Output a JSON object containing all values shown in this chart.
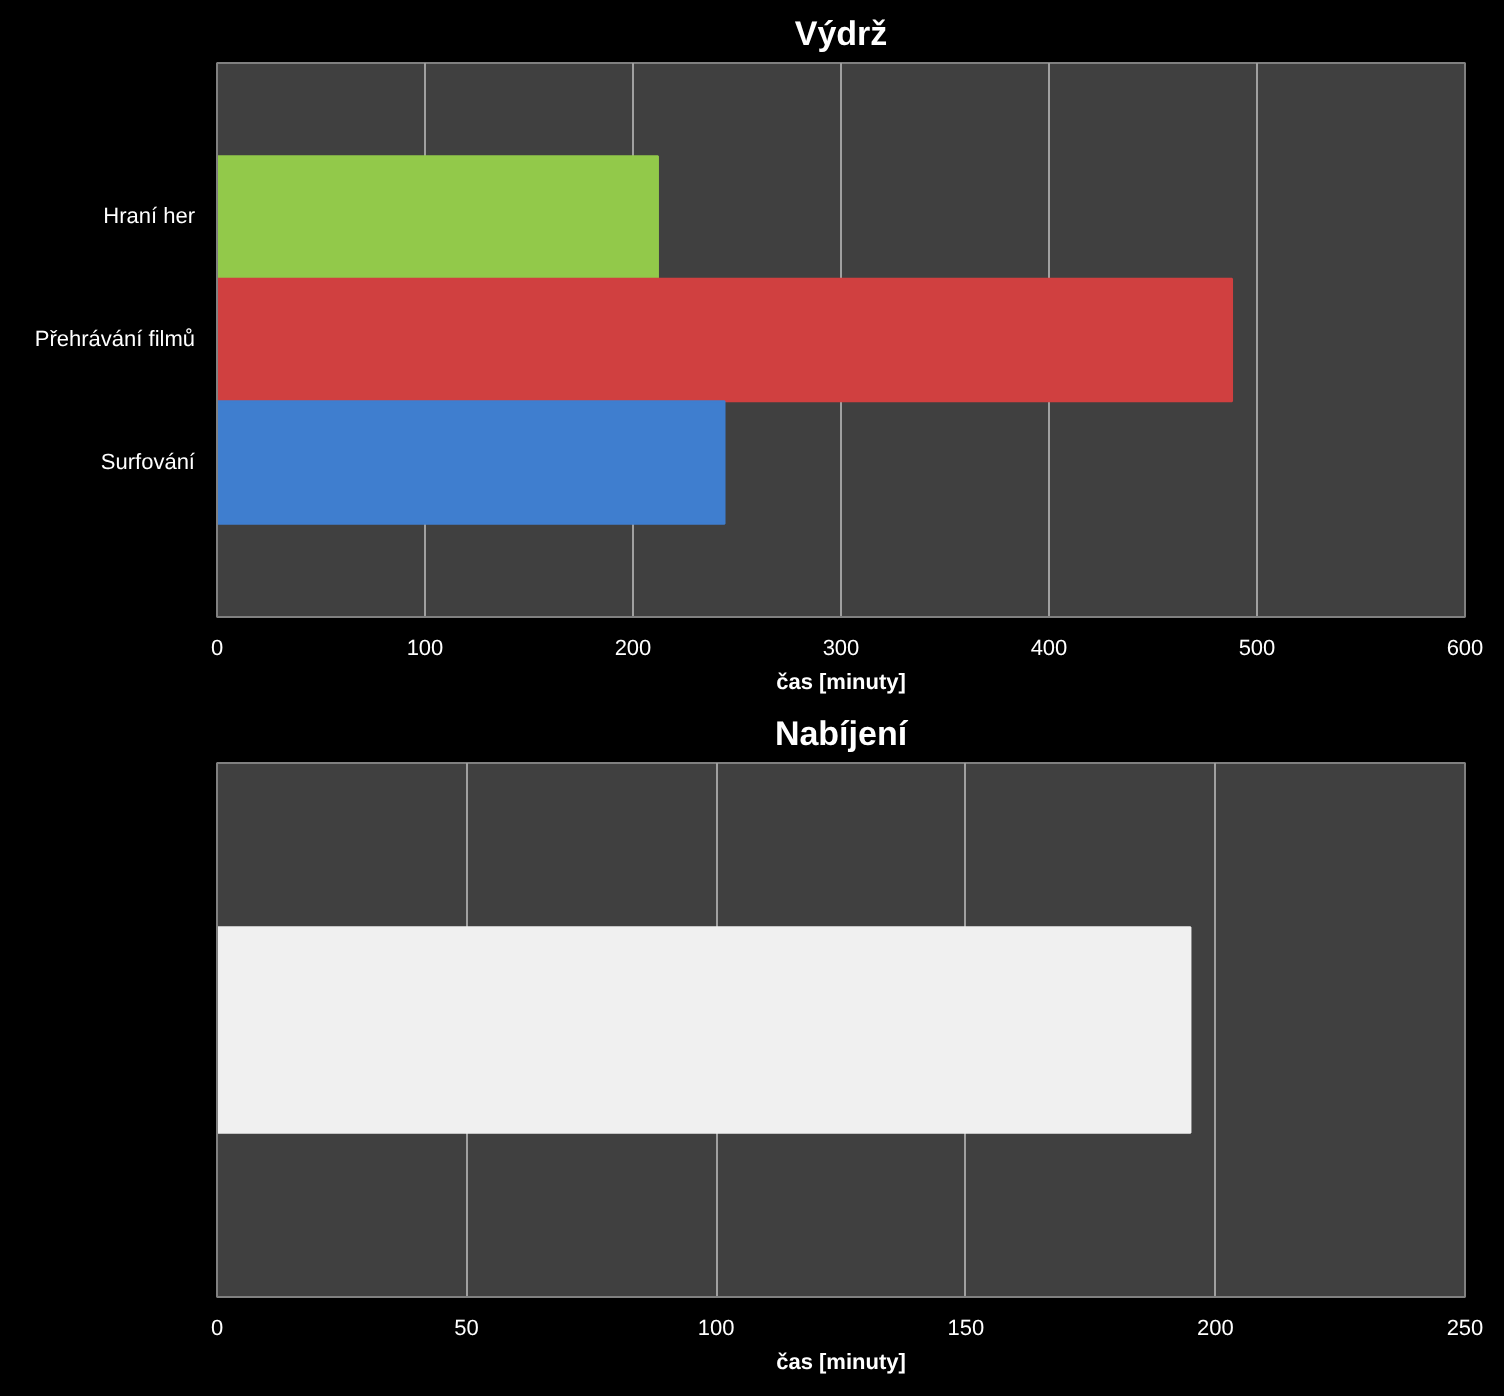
{
  "chart_data": [
    {
      "type": "bar",
      "orientation": "horizontal",
      "title": "Výdrž",
      "xlabel": "čas [minuty]",
      "categories": [
        "Hraní her",
        "Přehrávání filmů",
        "Surfování"
      ],
      "values": [
        212,
        488,
        244
      ],
      "colors": [
        "#92c94a",
        "#d04040",
        "#3f7ecf"
      ],
      "xlim": [
        0,
        600
      ],
      "xticks": [
        0,
        100,
        200,
        300,
        400,
        500,
        600
      ],
      "grid": "x"
    },
    {
      "type": "bar",
      "orientation": "horizontal",
      "title": "Nabíjení",
      "xlabel": "čas [minuty]",
      "categories": [
        null
      ],
      "values": [
        195
      ],
      "colors": [
        "#f0f0f0"
      ],
      "xlim": [
        0,
        250
      ],
      "xticks": [
        0,
        50,
        100,
        150,
        200,
        250
      ],
      "grid": "x"
    }
  ]
}
